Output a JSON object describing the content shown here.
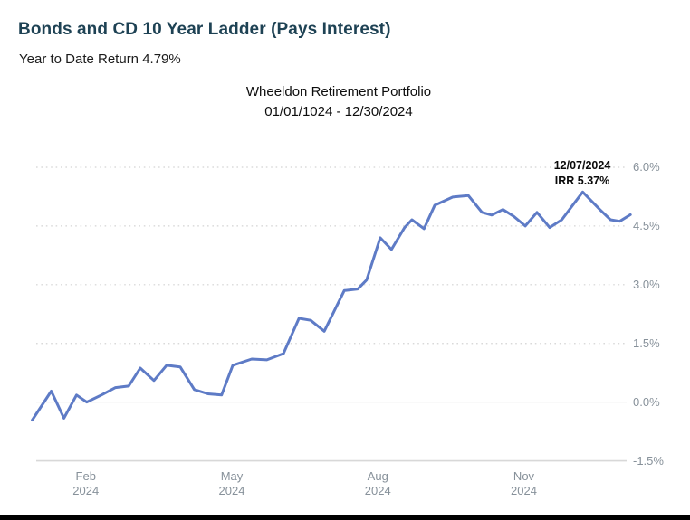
{
  "header": {
    "title": "Bonds and CD 10 Year Ladder (Pays Interest)",
    "subtitle": "Year to Date Return 4.79%"
  },
  "chart": {
    "title": "Wheeldon Retirement Portfolio",
    "date_range": "01/01/1024 - 12/30/2024"
  },
  "colors": {
    "line": "#5e7bc6",
    "heading": "#1e4254",
    "axis_text": "#87919a",
    "annotation_text": "#0a0a0a",
    "grid_dotted": "#d4d4d4",
    "grid_zero": "#e8e8e8",
    "axis_line": "#d8d8d8"
  },
  "chart_data": {
    "type": "line",
    "title": "Wheeldon Retirement Portfolio",
    "subtitle": "01/01/1024 - 12/30/2024",
    "xlabel": "",
    "ylabel": "",
    "x_unit": "months from 01/01/2024",
    "xlim": [
      -0.15,
      12.25
    ],
    "ylim": [
      -1.5,
      6.0
    ],
    "grid": "horizontal, dotted; zero line and bottom axis solid",
    "legend": "none",
    "yticks": [
      {
        "label": "6.0%",
        "v": 6.0
      },
      {
        "label": "4.5%",
        "v": 4.5
      },
      {
        "label": "3.0%",
        "v": 3.0
      },
      {
        "label": "1.5%",
        "v": 1.5
      },
      {
        "label": "0.0%",
        "v": 0.0
      },
      {
        "label": "-1.5%",
        "v": -1.5
      }
    ],
    "xticks": [
      {
        "label": "Feb",
        "sublabel": "2024",
        "t": 1
      },
      {
        "label": "May",
        "sublabel": "2024",
        "t": 4
      },
      {
        "label": "Aug",
        "sublabel": "2024",
        "t": 7
      },
      {
        "label": "Nov",
        "sublabel": "2024",
        "t": 10
      }
    ],
    "annotation": {
      "line1": "12/07/2024",
      "line2": "IRR 5.37%",
      "t": 11.2,
      "v": 5.37
    },
    "final_value_pct": 4.79,
    "series": [
      {
        "name": "IRR %",
        "color": "#5e7bc6",
        "points": [
          [
            -0.1,
            -0.46
          ],
          [
            0.29,
            0.28
          ],
          [
            0.55,
            -0.41
          ],
          [
            0.81,
            0.18
          ],
          [
            1.02,
            0.0
          ],
          [
            1.32,
            0.18
          ],
          [
            1.61,
            0.37
          ],
          [
            1.88,
            0.41
          ],
          [
            2.12,
            0.87
          ],
          [
            2.4,
            0.55
          ],
          [
            2.66,
            0.94
          ],
          [
            2.94,
            0.9
          ],
          [
            3.23,
            0.32
          ],
          [
            3.51,
            0.21
          ],
          [
            3.79,
            0.18
          ],
          [
            4.02,
            0.94
          ],
          [
            4.41,
            1.1
          ],
          [
            4.72,
            1.08
          ],
          [
            5.06,
            1.24
          ],
          [
            5.38,
            2.14
          ],
          [
            5.62,
            2.09
          ],
          [
            5.9,
            1.81
          ],
          [
            6.31,
            2.85
          ],
          [
            6.59,
            2.89
          ],
          [
            6.77,
            3.12
          ],
          [
            7.05,
            4.2
          ],
          [
            7.28,
            3.9
          ],
          [
            7.55,
            4.46
          ],
          [
            7.7,
            4.66
          ],
          [
            7.95,
            4.43
          ],
          [
            8.17,
            5.03
          ],
          [
            8.54,
            5.24
          ],
          [
            8.86,
            5.28
          ],
          [
            9.14,
            4.85
          ],
          [
            9.34,
            4.78
          ],
          [
            9.57,
            4.92
          ],
          [
            9.79,
            4.75
          ],
          [
            10.03,
            4.5
          ],
          [
            10.27,
            4.85
          ],
          [
            10.53,
            4.46
          ],
          [
            10.78,
            4.66
          ],
          [
            11.21,
            5.37
          ],
          [
            11.56,
            4.92
          ],
          [
            11.78,
            4.66
          ],
          [
            11.97,
            4.62
          ],
          [
            12.19,
            4.79
          ]
        ]
      }
    ]
  }
}
